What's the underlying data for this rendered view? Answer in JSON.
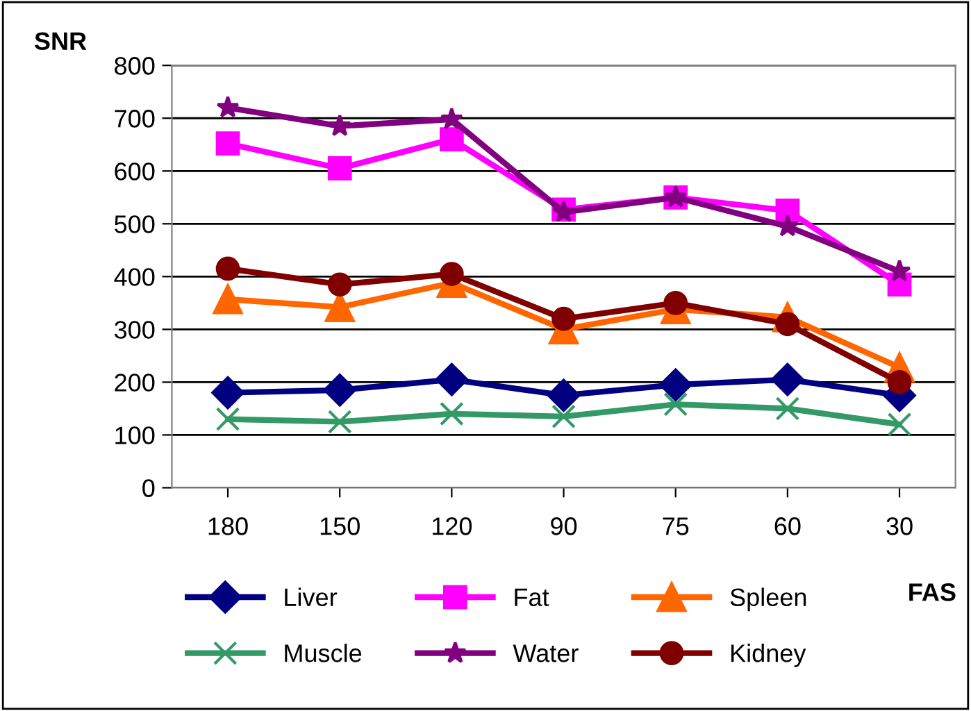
{
  "chart_data": {
    "type": "line",
    "ylabel": "SNR",
    "xlabel": "FAS",
    "categories": [
      "180",
      "150",
      "120",
      "90",
      "75",
      "60",
      "30"
    ],
    "ylim": [
      0,
      800
    ],
    "yticks": [
      0,
      100,
      200,
      300,
      400,
      500,
      600,
      700,
      800
    ],
    "grid": "y",
    "legend": "bottom",
    "line_style": "solid",
    "series": [
      {
        "name": "Liver",
        "color": "#000080",
        "marker": "diamond",
        "values": [
          180,
          185,
          205,
          175,
          195,
          205,
          175
        ]
      },
      {
        "name": "Fat",
        "color": "#ff00ff",
        "marker": "square",
        "values": [
          652,
          605,
          660,
          527,
          550,
          525,
          385
        ]
      },
      {
        "name": "Spleen",
        "color": "#ff6600",
        "marker": "triangle",
        "values": [
          357,
          342,
          388,
          300,
          338,
          323,
          228
        ]
      },
      {
        "name": "Muscle",
        "color": "#339966",
        "marker": "cross",
        "values": [
          130,
          125,
          140,
          135,
          158,
          150,
          120
        ]
      },
      {
        "name": "Water",
        "color": "#800080",
        "marker": "star",
        "values": [
          720,
          685,
          698,
          522,
          550,
          495,
          410
        ]
      },
      {
        "name": "Kidney",
        "color": "#800000",
        "marker": "circle",
        "values": [
          415,
          385,
          405,
          320,
          350,
          310,
          200
        ]
      }
    ]
  }
}
